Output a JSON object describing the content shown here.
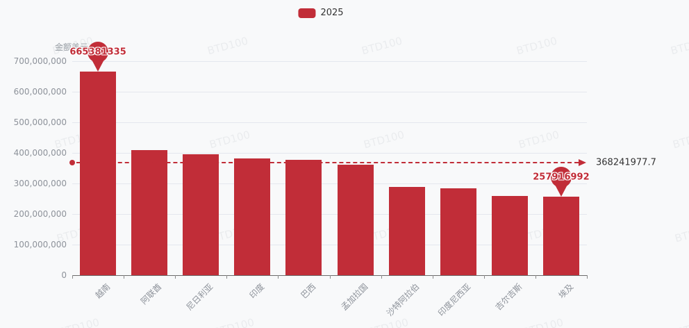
{
  "watermark": {
    "text": "BTD100"
  },
  "legend": {
    "label": "2025"
  },
  "colors": {
    "accent": "#c12d38",
    "avg_label_text": "#333333",
    "axis_text": "#8d929a",
    "gridline": "#e4e7ee",
    "background": "#f8f9fa"
  },
  "chart_data": {
    "type": "bar",
    "title": "",
    "ylabel": "金额美元",
    "xlabel": "",
    "legend_position": "top-center",
    "grid": true,
    "ylim": [
      0,
      700000000
    ],
    "ytick_step": 100000000,
    "categories": [
      "越南",
      "阿联酋",
      "尼日利亚",
      "印度",
      "巴西",
      "孟加拉国",
      "沙特阿拉伯",
      "印度尼西亚",
      "吉尔吉斯",
      "埃及"
    ],
    "series": [
      {
        "name": "2025",
        "values": [
          665381335,
          410000000,
          395000000,
          381000000,
          377000000,
          362000000,
          289000000,
          284000000,
          259000000,
          257916992
        ]
      }
    ],
    "average_line": {
      "value": 368241977.7,
      "label": "368241977.7"
    },
    "markers": [
      {
        "category_index": 0,
        "label": "665381335",
        "type": "max"
      },
      {
        "category_index": 9,
        "label": "257916992",
        "type": "min"
      }
    ]
  }
}
